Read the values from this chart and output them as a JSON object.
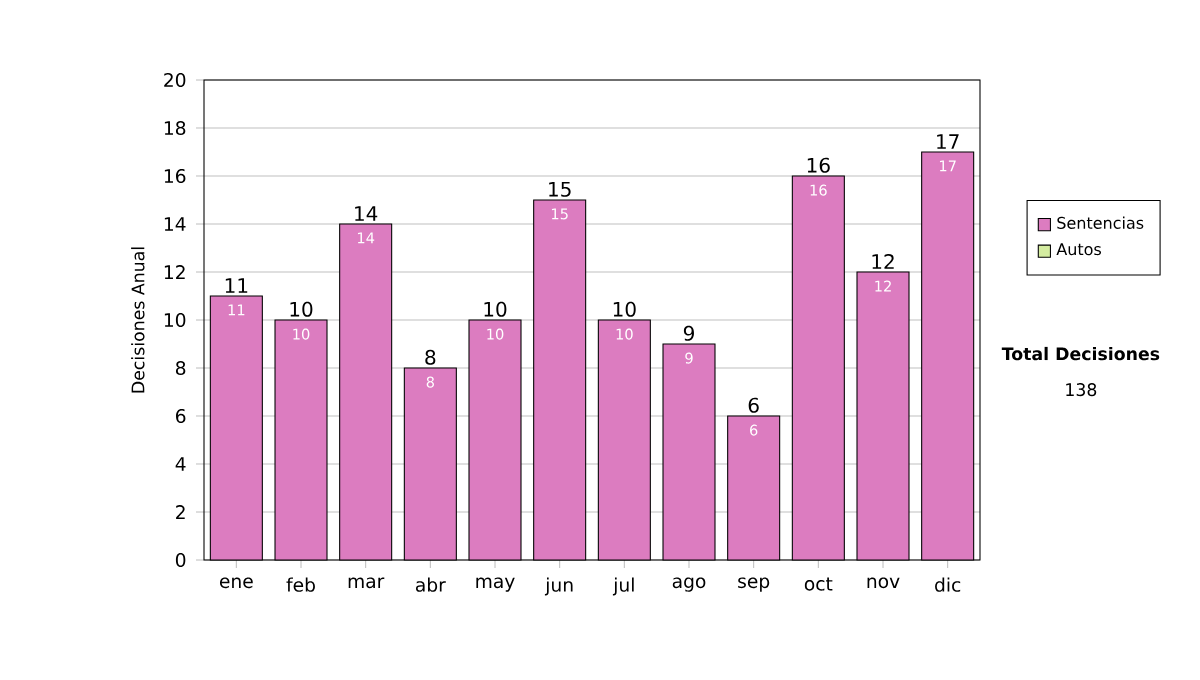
{
  "chart_data": {
    "type": "bar",
    "ylabel": "Decisiones Anual",
    "categories": [
      "ene",
      "feb",
      "mar",
      "abr",
      "may",
      "jun",
      "jul",
      "ago",
      "sep",
      "oct",
      "nov",
      "dic"
    ],
    "series": [
      {
        "name": "Sentencias",
        "color": "#dc7cc0",
        "values": [
          11,
          10,
          14,
          8,
          10,
          15,
          10,
          9,
          6,
          16,
          12,
          17
        ],
        "value_labels": [
          "11",
          "10",
          "14",
          "8",
          "10",
          "15",
          "10",
          "9",
          "6",
          "16",
          "12",
          "17"
        ]
      },
      {
        "name": "Autos",
        "color": "#d4eca0",
        "values": [
          0,
          0,
          0,
          0,
          0,
          0,
          0,
          0,
          0,
          0,
          0,
          0
        ]
      }
    ],
    "stacked": true,
    "totals": [
      "11",
      "10",
      "14",
      "8",
      "10",
      "15",
      "10",
      "9",
      "6",
      "16",
      "12",
      "17"
    ],
    "ylim": [
      0,
      20
    ],
    "yticks": [
      0,
      2,
      4,
      6,
      8,
      10,
      12,
      14,
      16,
      18,
      20
    ],
    "grid": "y",
    "legend": "right",
    "annotations": [
      "**Total Decisiones**",
      "138"
    ]
  }
}
